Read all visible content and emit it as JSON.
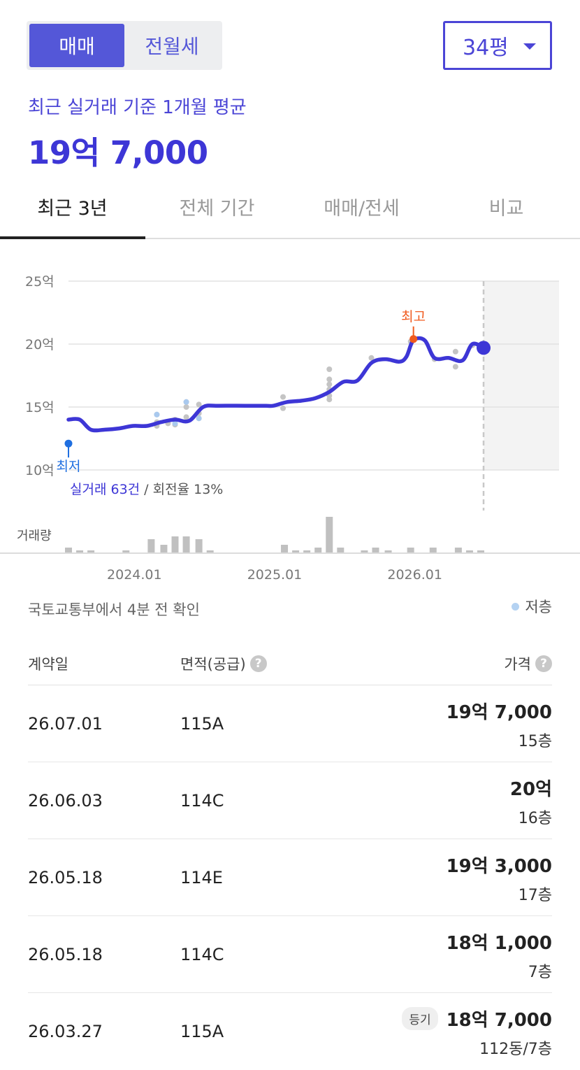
{
  "deal_toggle": {
    "sale": "매매",
    "rent": "전월세"
  },
  "pyeong": {
    "selected": "34평"
  },
  "summary": {
    "label": "최근 실거래 기준 1개월 평균",
    "price": "19억 7,000"
  },
  "tabs": [
    "최근 3년",
    "전체 기간",
    "매매/전세",
    "비교"
  ],
  "chart_data": {
    "type": "line",
    "y_ticks": [
      "25억",
      "20억",
      "15억",
      "10억"
    ],
    "ylim": [
      10,
      25
    ],
    "x_ticks": [
      "2024.01",
      "2025.01",
      "2026.01"
    ],
    "marker_high": "최고",
    "marker_low": "최저",
    "trade_summary": {
      "count": "실거래 63건",
      "rate": " / 회전율 13%"
    },
    "volume_label": "거래량",
    "series": [
      {
        "values": [
          [
            2023.54,
            14.0
          ],
          [
            2023.62,
            14.0
          ],
          [
            2023.7,
            13.2
          ],
          [
            2023.8,
            13.2
          ],
          [
            2023.9,
            13.3
          ],
          [
            2024.0,
            13.5
          ],
          [
            2024.1,
            13.5
          ],
          [
            2024.2,
            13.8
          ],
          [
            2024.3,
            14.0
          ],
          [
            2024.4,
            13.9
          ],
          [
            2024.5,
            15.0
          ],
          [
            2024.6,
            15.1
          ],
          [
            2024.8,
            15.1
          ],
          [
            2024.95,
            15.1
          ],
          [
            2025.0,
            15.1
          ],
          [
            2025.1,
            15.4
          ],
          [
            2025.2,
            15.5
          ],
          [
            2025.3,
            15.7
          ],
          [
            2025.4,
            16.2
          ],
          [
            2025.5,
            17.0
          ],
          [
            2025.6,
            17.1
          ],
          [
            2025.7,
            18.5
          ],
          [
            2025.8,
            18.8
          ],
          [
            2025.9,
            18.6
          ],
          [
            2025.95,
            19.0
          ],
          [
            2026.0,
            20.3
          ],
          [
            2026.08,
            20.3
          ],
          [
            2026.15,
            18.9
          ],
          [
            2026.25,
            18.9
          ],
          [
            2026.35,
            18.7
          ],
          [
            2026.42,
            20.0
          ],
          [
            2026.5,
            19.7
          ]
        ]
      }
    ],
    "trades": [
      [
        2024.17,
        14.4
      ],
      [
        2024.17,
        13.5
      ],
      [
        2024.17,
        13.8
      ],
      [
        2024.25,
        13.7
      ],
      [
        2024.3,
        14.0
      ],
      [
        2024.3,
        13.6
      ],
      [
        2024.38,
        15.4
      ],
      [
        2024.38,
        15.0
      ],
      [
        2024.38,
        14.2
      ],
      [
        2024.47,
        15.2
      ],
      [
        2024.47,
        14.5
      ],
      [
        2024.47,
        14.1
      ],
      [
        2025.07,
        15.8
      ],
      [
        2025.07,
        14.9
      ],
      [
        2025.4,
        18.0
      ],
      [
        2025.4,
        17.2
      ],
      [
        2025.4,
        16.8
      ],
      [
        2025.4,
        16.4
      ],
      [
        2025.4,
        15.9
      ],
      [
        2025.4,
        15.6
      ],
      [
        2025.7,
        18.9
      ],
      [
        2025.98,
        20.2
      ],
      [
        2026.15,
        18.8
      ],
      [
        2026.3,
        19.4
      ],
      [
        2026.3,
        18.2
      ],
      [
        2026.42,
        19.9
      ]
    ],
    "low_floor_trades": [
      [
        2024.17,
        14.4
      ],
      [
        2024.38,
        15.4
      ],
      [
        2024.47,
        14.1
      ],
      [
        2024.3,
        13.7
      ]
    ],
    "high": [
      2026.0,
      20.4
    ],
    "low": [
      2023.54,
      12.1
    ],
    "last": [
      2026.5,
      19.7
    ],
    "volume": [
      [
        2023.54,
        2
      ],
      [
        2023.62,
        1
      ],
      [
        2023.7,
        1
      ],
      [
        2023.95,
        1
      ],
      [
        2024.13,
        5
      ],
      [
        2024.22,
        3
      ],
      [
        2024.3,
        6
      ],
      [
        2024.38,
        6
      ],
      [
        2024.47,
        5
      ],
      [
        2024.55,
        1
      ],
      [
        2025.08,
        3
      ],
      [
        2025.16,
        1
      ],
      [
        2025.24,
        1
      ],
      [
        2025.32,
        2
      ],
      [
        2025.4,
        13
      ],
      [
        2025.48,
        2
      ],
      [
        2025.65,
        1
      ],
      [
        2025.73,
        2
      ],
      [
        2025.82,
        1
      ],
      [
        2025.98,
        2
      ],
      [
        2026.14,
        2
      ],
      [
        2026.32,
        2
      ],
      [
        2026.4,
        1
      ],
      [
        2026.48,
        1
      ]
    ]
  },
  "source_text": "국토교통부에서 4분 전 확인",
  "legend_low_floor": "저층",
  "table": {
    "headers": {
      "date": "계약일",
      "area": "면적(공급)",
      "price": "가격"
    },
    "help_icon": "?",
    "rows": [
      {
        "date": "26.07.01",
        "area": "115A",
        "badge": "",
        "price": "19억 7,000",
        "floor": "15층"
      },
      {
        "date": "26.06.03",
        "area": "114C",
        "badge": "",
        "price": "20억",
        "floor": "16층"
      },
      {
        "date": "26.05.18",
        "area": "114E",
        "badge": "",
        "price": "19억 3,000",
        "floor": "17층"
      },
      {
        "date": "26.05.18",
        "area": "114C",
        "badge": "",
        "price": "18억 1,000",
        "floor": "7층"
      },
      {
        "date": "26.03.27",
        "area": "115A",
        "badge": "등기",
        "price": "18억 7,000",
        "floor": "112동/7층"
      }
    ]
  }
}
